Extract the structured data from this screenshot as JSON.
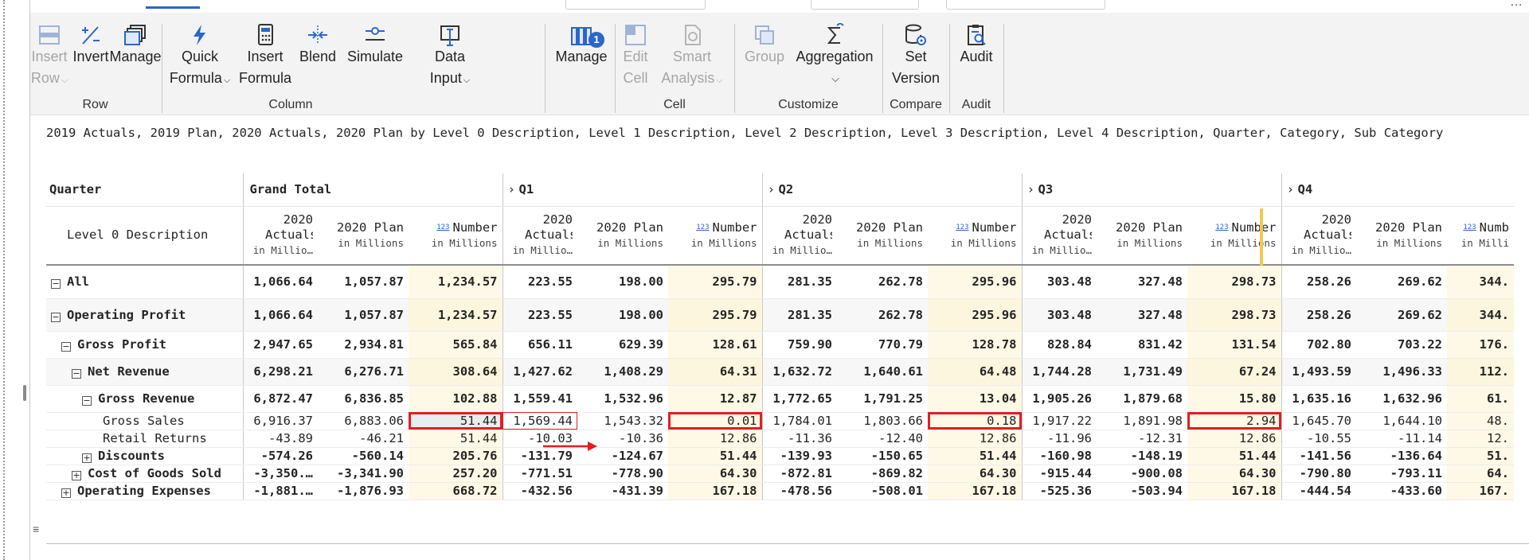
{
  "ribbon": {
    "groups": [
      {
        "label": "Row",
        "buttons": [
          {
            "label": "Insert",
            "label2": "Row",
            "chevron": true,
            "disabled": true,
            "icon": "insert-row-icon"
          },
          {
            "label": "Invert",
            "label2": "",
            "disabled": false,
            "icon": "invert-icon"
          },
          {
            "label": "Manage",
            "label2": "",
            "disabled": false,
            "icon": "manage-rows-icon"
          }
        ]
      },
      {
        "label": "Column",
        "buttons": [
          {
            "label": "Quick",
            "label2": "Formula",
            "chevron": true,
            "disabled": false,
            "icon": "lightning-icon"
          },
          {
            "label": "Insert",
            "label2": "Formula",
            "disabled": false,
            "icon": "calculator-icon"
          },
          {
            "label": "Blend",
            "label2": "",
            "disabled": false,
            "icon": "blend-icon"
          },
          {
            "label": "Simulate",
            "label2": "",
            "disabled": false,
            "icon": "slider-icon"
          },
          {
            "label": "Data",
            "label2": "Input",
            "chevron": true,
            "disabled": false,
            "icon": "data-input-icon"
          }
        ]
      },
      {
        "label": "",
        "buttons": [
          {
            "label": "Manage",
            "label2": "",
            "disabled": false,
            "icon": "manage-columns-icon",
            "badge": "1"
          }
        ]
      },
      {
        "label": "Cell",
        "buttons": [
          {
            "label": "Edit",
            "label2": "Cell",
            "disabled": true,
            "icon": "edit-cell-icon"
          },
          {
            "label": "Smart",
            "label2": "Analysis",
            "chevron": true,
            "disabled": true,
            "icon": "smart-analysis-icon"
          }
        ]
      },
      {
        "label": "Customize",
        "buttons": [
          {
            "label": "Group",
            "label2": "",
            "disabled": true,
            "icon": "group-icon"
          },
          {
            "label": "Aggregation",
            "label2": "",
            "chevron": true,
            "disabled": false,
            "icon": "sigma-icon"
          }
        ]
      },
      {
        "label": "Compare",
        "buttons": [
          {
            "label": "Set",
            "label2": "Version",
            "disabled": false,
            "icon": "database-gear-icon"
          }
        ]
      },
      {
        "label": "Audit",
        "buttons": [
          {
            "label": "Audit",
            "label2": "",
            "disabled": false,
            "icon": "audit-icon"
          }
        ]
      }
    ]
  },
  "description": "2019 Actuals, 2019 Plan, 2020 Actuals, 2020 Plan by Level 0 Description, Level 1 Description, Level 2 Description, Level 3 Description, Level 4 Description, Quarter, Category, Sub Category",
  "grid": {
    "quarter_label": "Quarter",
    "level_label": "Level 0 Description",
    "groups": [
      "Grand Total",
      "Q1",
      "Q2",
      "Q3",
      "Q4"
    ],
    "col_headers": [
      {
        "title": "2020 Actuals",
        "sub": "in Millio…",
        "icon": ""
      },
      {
        "title": "2020 Plan",
        "sub": "in Millions",
        "icon": ""
      },
      {
        "title": "Number",
        "sub": "in Millions",
        "icon": "123"
      }
    ],
    "last_col_header": {
      "title": "Numb",
      "sub": "in Milli",
      "icon": "123"
    },
    "rows": [
      {
        "label": "All",
        "indent": 0,
        "toggle": "⊟",
        "bold": true,
        "band": false,
        "tall": true,
        "values": [
          "1,066.64",
          "1,057.87",
          "1,234.57",
          "223.55",
          "198.00",
          "295.79",
          "281.35",
          "262.78",
          "295.96",
          "303.48",
          "327.48",
          "298.73",
          "258.26",
          "269.62",
          "344."
        ]
      },
      {
        "label": "Operating Profit",
        "indent": 0,
        "toggle": "⊟",
        "bold": true,
        "band": true,
        "tall": true,
        "values": [
          "1,066.64",
          "1,057.87",
          "1,234.57",
          "223.55",
          "198.00",
          "295.79",
          "281.35",
          "262.78",
          "295.96",
          "303.48",
          "327.48",
          "298.73",
          "258.26",
          "269.62",
          "344."
        ]
      },
      {
        "label": "Gross Profit",
        "indent": 1,
        "toggle": "⊟",
        "bold": true,
        "band": false,
        "tall": true,
        "values": [
          "2,947.65",
          "2,934.81",
          "565.84",
          "656.11",
          "629.39",
          "128.61",
          "759.90",
          "770.79",
          "128.78",
          "828.84",
          "831.42",
          "131.54",
          "702.80",
          "703.22",
          "176."
        ]
      },
      {
        "label": "Net Revenue",
        "indent": 2,
        "toggle": "⊟",
        "bold": true,
        "band": true,
        "tall": true,
        "values": [
          "6,298.21",
          "6,276.71",
          "308.64",
          "1,427.62",
          "1,408.29",
          "64.31",
          "1,632.72",
          "1,640.61",
          "64.48",
          "1,744.28",
          "1,731.49",
          "67.24",
          "1,493.59",
          "1,496.33",
          "112."
        ]
      },
      {
        "label": "Gross Revenue",
        "indent": 3,
        "toggle": "⊟",
        "bold": true,
        "band": false,
        "tall": true,
        "values": [
          "6,872.47",
          "6,836.85",
          "102.88",
          "1,559.41",
          "1,532.96",
          "12.87",
          "1,772.65",
          "1,791.25",
          "13.04",
          "1,905.26",
          "1,879.68",
          "15.80",
          "1,635.16",
          "1,632.96",
          "61."
        ]
      },
      {
        "label": "Gross Sales",
        "indent": 5,
        "toggle": "",
        "bold": false,
        "band": false,
        "tall": false,
        "values": [
          "6,916.37",
          "6,883.06",
          "51.44",
          "1,569.44",
          "1,543.32",
          "0.01",
          "1,784.01",
          "1,803.66",
          "0.18",
          "1,917.22",
          "1,891.98",
          "2.94",
          "1,645.70",
          "1,644.10",
          "48."
        ]
      },
      {
        "label": "Retail Returns",
        "indent": 5,
        "toggle": "",
        "bold": false,
        "band": false,
        "tall": false,
        "values": [
          "-43.89",
          "-46.21",
          "51.44",
          "-10.03",
          "-10.36",
          "12.86",
          "-11.36",
          "-12.40",
          "12.86",
          "-11.96",
          "-12.31",
          "12.86",
          "-10.55",
          "-11.14",
          "12."
        ]
      },
      {
        "label": "Discounts",
        "indent": 3,
        "toggle": "⊞",
        "bold": true,
        "band": false,
        "tall": false,
        "values": [
          "-574.26",
          "-560.14",
          "205.76",
          "-131.79",
          "-124.67",
          "51.44",
          "-139.93",
          "-150.65",
          "51.44",
          "-160.98",
          "-148.19",
          "51.44",
          "-141.56",
          "-136.64",
          "51."
        ]
      },
      {
        "label": "Cost of Goods Sold",
        "indent": 2,
        "toggle": "⊞",
        "bold": true,
        "band": false,
        "tall": false,
        "values": [
          "-3,350.…",
          "-3,341.90",
          "257.20",
          "-771.51",
          "-778.90",
          "64.30",
          "-872.81",
          "-869.82",
          "64.30",
          "-915.44",
          "-900.08",
          "64.30",
          "-790.80",
          "-793.11",
          "64."
        ]
      },
      {
        "label": "Operating Expenses",
        "indent": 1,
        "toggle": "⊞",
        "bold": true,
        "band": false,
        "tall": false,
        "values": [
          "-1,881.…",
          "-1,876.93",
          "668.72",
          "-432.56",
          "-431.39",
          "167.18",
          "-478.56",
          "-508.01",
          "167.18",
          "-525.36",
          "-503.94",
          "167.18",
          "-444.54",
          "-433.60",
          "167."
        ]
      }
    ]
  },
  "colors": {
    "accent": "#2b66c9",
    "highlight": "#e51c23",
    "number_col_bg": "#fdf9e6"
  }
}
